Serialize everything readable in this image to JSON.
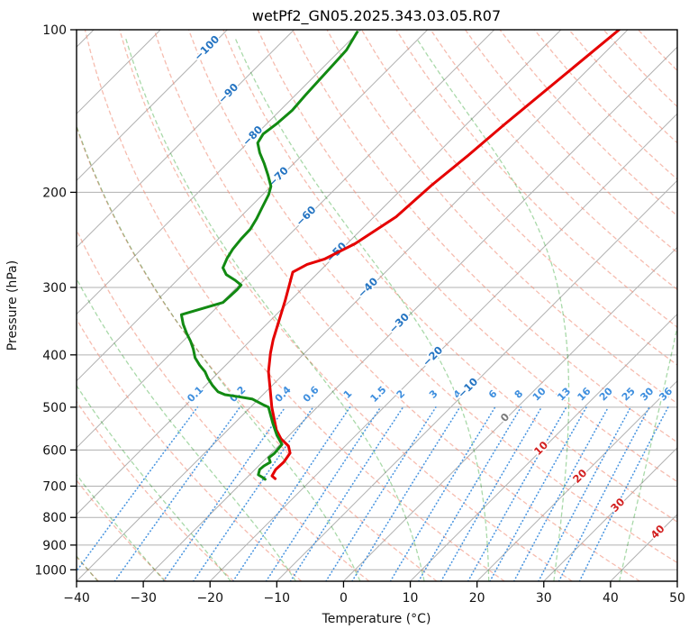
{
  "chart": {
    "title": "wetPf2_GN05.2025.343.03.05.R07",
    "xlabel": "Temperature (°C)",
    "ylabel": "Pressure (hPa)"
  },
  "chart_data": {
    "type": "skewt-log-p",
    "title": "wetPf2_GN05.2025.343.03.05.R07",
    "xlabel": "Temperature (°C)",
    "ylabel": "Pressure (hPa)",
    "x_range_degC": [
      -40,
      50
    ],
    "x_ticks": [
      "−40",
      "−30",
      "−20",
      "−10",
      "0",
      "10",
      "20",
      "30",
      "40",
      "50"
    ],
    "x_tick_values": [
      -40,
      -30,
      -20,
      -10,
      0,
      10,
      20,
      30,
      40,
      50
    ],
    "pressure_range_hPa": [
      100,
      1050
    ],
    "pressure_ticks": [
      100,
      200,
      300,
      400,
      500,
      600,
      700,
      800,
      900,
      1000
    ],
    "skew_deg": 45,
    "grid": {
      "isobars_hPa": [
        100,
        200,
        300,
        400,
        500,
        600,
        700,
        800,
        900,
        1000
      ],
      "isotherms_degC": {
        "from": -160,
        "to": 60,
        "step": 10
      },
      "dry_adiabats_theta_degC": {
        "from": -60,
        "to": 180,
        "step": 10
      },
      "moist_adiabats_start_degC_at_1000hPa": {
        "from": -60,
        "to": 40,
        "step": 10
      },
      "mixing_ratio_g_per_kg": [
        0.1,
        0.2,
        0.4,
        0.6,
        1,
        1.5,
        2,
        3,
        4,
        6,
        8,
        10,
        13,
        16,
        20,
        25,
        30,
        36
      ],
      "mixing_ratio_top_hPa": 500
    },
    "isotherm_labels": [
      {
        "value": -100,
        "pressure": 108
      },
      {
        "value": -90,
        "pressure": 131
      },
      {
        "value": -80,
        "pressure": 157
      },
      {
        "value": -70,
        "pressure": 187
      },
      {
        "value": -60,
        "pressure": 221
      },
      {
        "value": -50,
        "pressure": 258
      },
      {
        "value": -40,
        "pressure": 300
      },
      {
        "value": -30,
        "pressure": 349
      },
      {
        "value": -20,
        "pressure": 402
      },
      {
        "value": -10,
        "pressure": 460
      },
      {
        "value": 0,
        "pressure": 522
      },
      {
        "value": 10,
        "pressure": 595
      },
      {
        "value": 20,
        "pressure": 670
      },
      {
        "value": 30,
        "pressure": 758
      },
      {
        "value": 40,
        "pressure": 850
      }
    ],
    "series": [
      {
        "name": "temperature",
        "color": "#e50000",
        "points_p_T": [
          [
            100,
            -41.3
          ],
          [
            150,
            -44.3
          ],
          [
            171,
            -45.1
          ],
          [
            194,
            -46.1
          ],
          [
            222,
            -46.7
          ],
          [
            249,
            -48.8
          ],
          [
            266,
            -51.1
          ],
          [
            272,
            -52.9
          ],
          [
            281,
            -53.9
          ],
          [
            317,
            -50.8
          ],
          [
            375,
            -46.7
          ],
          [
            397,
            -45.1
          ],
          [
            430,
            -42.6
          ],
          [
            460,
            -40.0
          ],
          [
            500,
            -36.8
          ],
          [
            551,
            -32.7
          ],
          [
            572,
            -30.7
          ],
          [
            590,
            -28.5
          ],
          [
            608,
            -27.2
          ],
          [
            632,
            -26.8
          ],
          [
            652,
            -26.9
          ],
          [
            670,
            -26.5
          ],
          [
            678,
            -25.6
          ]
        ]
      },
      {
        "name": "dewpoint",
        "color": "#128a12",
        "points_p_T": [
          [
            101,
            -80.2
          ],
          [
            109,
            -79.1
          ],
          [
            116,
            -78.9
          ],
          [
            124,
            -78.7
          ],
          [
            132,
            -78.5
          ],
          [
            141,
            -78.2
          ],
          [
            149,
            -78.5
          ],
          [
            156,
            -79.0
          ],
          [
            162,
            -78.5
          ],
          [
            169,
            -76.7
          ],
          [
            177,
            -74.4
          ],
          [
            186,
            -72.1
          ],
          [
            195,
            -70.0
          ],
          [
            202,
            -69.1
          ],
          [
            214,
            -68.1
          ],
          [
            224,
            -67.3
          ],
          [
            234,
            -66.7
          ],
          [
            244,
            -66.6
          ],
          [
            255,
            -66.3
          ],
          [
            265,
            -65.8
          ],
          [
            276,
            -65.0
          ],
          [
            284,
            -63.5
          ],
          [
            291,
            -61.3
          ],
          [
            297,
            -59.7
          ],
          [
            303,
            -59.6
          ],
          [
            312,
            -59.7
          ],
          [
            320,
            -59.8
          ],
          [
            337,
            -64.2
          ],
          [
            351,
            -62.5
          ],
          [
            365,
            -60.6
          ],
          [
            377,
            -58.9
          ],
          [
            390,
            -57.3
          ],
          [
            405,
            -55.7
          ],
          [
            418,
            -53.9
          ],
          [
            430,
            -52.1
          ],
          [
            442,
            -50.7
          ],
          [
            456,
            -48.9
          ],
          [
            468,
            -47.2
          ],
          [
            474,
            -45.7
          ],
          [
            478,
            -43.4
          ],
          [
            483,
            -40.9
          ],
          [
            496,
            -38.2
          ],
          [
            500,
            -37.3
          ],
          [
            536,
            -34.2
          ],
          [
            564,
            -31.8
          ],
          [
            586,
            -29.7
          ],
          [
            609,
            -29.5
          ],
          [
            620,
            -29.7
          ],
          [
            632,
            -28.8
          ],
          [
            642,
            -29.2
          ],
          [
            652,
            -29.3
          ],
          [
            667,
            -28.7
          ],
          [
            675,
            -27.6
          ],
          [
            680,
            -27.0
          ]
        ]
      }
    ],
    "colors": {
      "isobar": "#b0b0b0",
      "isotherm": "#b0b0b0",
      "dry_adiabat": "#f0907a",
      "moist_adiabat": "#6fc06f",
      "mixing_ratio": "#3f8fde",
      "label_blue": "#2474c2",
      "label_red": "#d21f1f",
      "label_gray": "#7a7a7a",
      "temperature_line": "#e50000",
      "dewpoint_line": "#128a12"
    },
    "legend": null,
    "grid_on": true
  }
}
